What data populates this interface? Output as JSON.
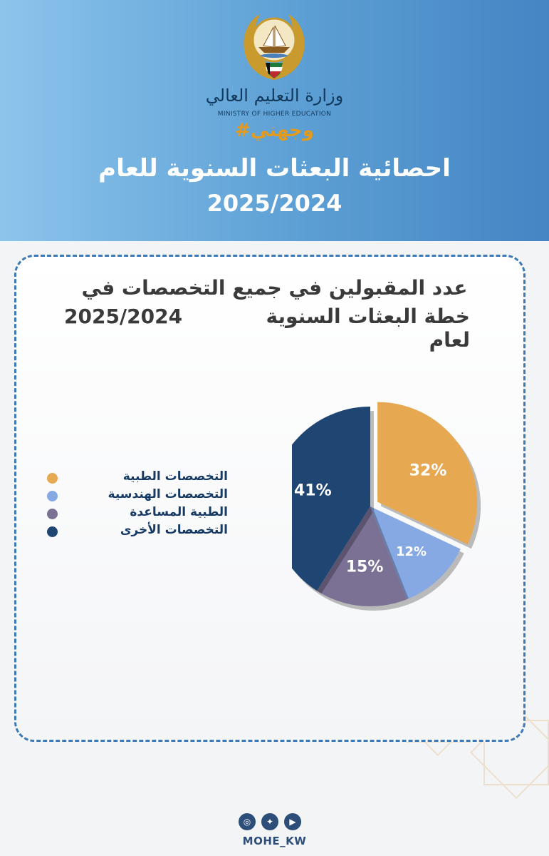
{
  "header": {
    "ministry_ar": "وزارة التعليم العالي",
    "ministry_en": "MINISTRY OF HIGHER EDUCATION",
    "hashtag": "#وجهني",
    "title_line1": "احصائية البعثات السنوية للعام",
    "title_line2": "2025/2024"
  },
  "card": {
    "subtitle_line1": "عدد المقبولين في جميع التخصصات في",
    "subtitle_line2a": "خطة البعثات السنوية لعام",
    "subtitle_line2b": "2025/2024"
  },
  "chart_data": {
    "type": "pie",
    "categories": [
      "التخصصات الطبية",
      "التخصصات الهندسية",
      "الطبية المساعدة",
      "التخصصات الأخرى"
    ],
    "values": [
      32,
      12,
      15,
      41
    ],
    "labels": [
      "32%",
      "12%",
      "15%",
      "41%"
    ],
    "colors": [
      "#e6a851",
      "#86a9e4",
      "#7b7194",
      "#1f4673"
    ],
    "legend_position": "left"
  },
  "footer": {
    "icons": [
      "instagram-icon",
      "twitter-icon",
      "youtube-icon"
    ],
    "handle": "MOHE_KW"
  }
}
